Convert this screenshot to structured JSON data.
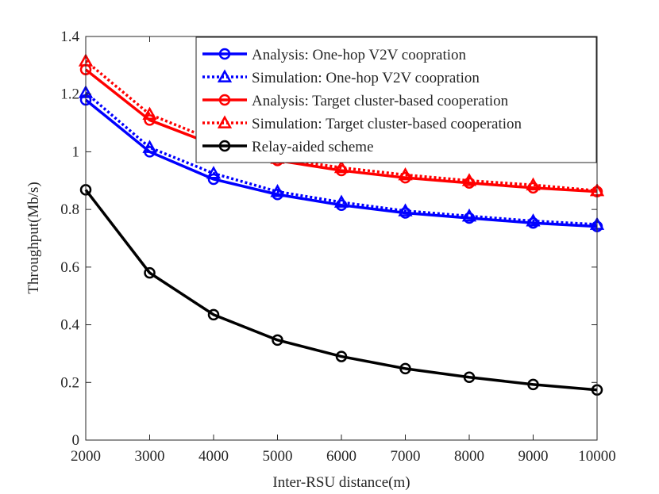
{
  "chart_data": {
    "type": "line",
    "title": "",
    "xlabel": "Inter-RSU distance(m)",
    "ylabel": "Throughput(Mb/s)",
    "xlim": [
      2000,
      10000
    ],
    "ylim": [
      0,
      1.4
    ],
    "xticks": [
      2000,
      3000,
      4000,
      5000,
      6000,
      7000,
      8000,
      9000,
      10000
    ],
    "xtick_labels": [
      "2000",
      "3000",
      "4000",
      "5000",
      "6000",
      "7000",
      "8000",
      "9000",
      "10000"
    ],
    "yticks": [
      0,
      0.2,
      0.4,
      0.6,
      0.8,
      1.0,
      1.2,
      1.4
    ],
    "ytick_labels": [
      "0",
      "0.2",
      "0.4",
      "0.6",
      "0.8",
      "1",
      "1.2",
      "1.4"
    ],
    "grid": false,
    "legend_position": "top-right",
    "x": [
      2000,
      3000,
      4000,
      5000,
      6000,
      7000,
      8000,
      9000,
      10000
    ],
    "series": [
      {
        "name": "Analysis: One-hop V2V coopration",
        "color": "#0000ff",
        "line": "solid",
        "marker": "circle",
        "values": [
          1.18,
          1.0,
          0.905,
          0.852,
          0.815,
          0.788,
          0.77,
          0.753,
          0.741
        ]
      },
      {
        "name": "Simulation: One-hop V2V coopration",
        "color": "#0000ff",
        "line": "dotted",
        "marker": "triangle",
        "values": [
          1.205,
          1.015,
          0.925,
          0.862,
          0.825,
          0.795,
          0.777,
          0.76,
          0.748
        ]
      },
      {
        "name": "Analysis: Target cluster-based cooperation",
        "color": "#ff0000",
        "line": "solid",
        "marker": "circle",
        "values": [
          1.285,
          1.11,
          1.025,
          0.97,
          0.935,
          0.91,
          0.892,
          0.875,
          0.862
        ]
      },
      {
        "name": "Simulation: Target cluster-based cooperation",
        "color": "#ff0000",
        "line": "dotted",
        "marker": "triangle",
        "values": [
          1.315,
          1.13,
          1.04,
          0.977,
          0.945,
          0.92,
          0.9,
          0.885,
          0.865
        ]
      },
      {
        "name": "Relay-aided scheme",
        "color": "#000000",
        "line": "solid",
        "marker": "circle",
        "values": [
          0.868,
          0.58,
          0.435,
          0.347,
          0.29,
          0.248,
          0.218,
          0.193,
          0.174
        ]
      }
    ]
  }
}
